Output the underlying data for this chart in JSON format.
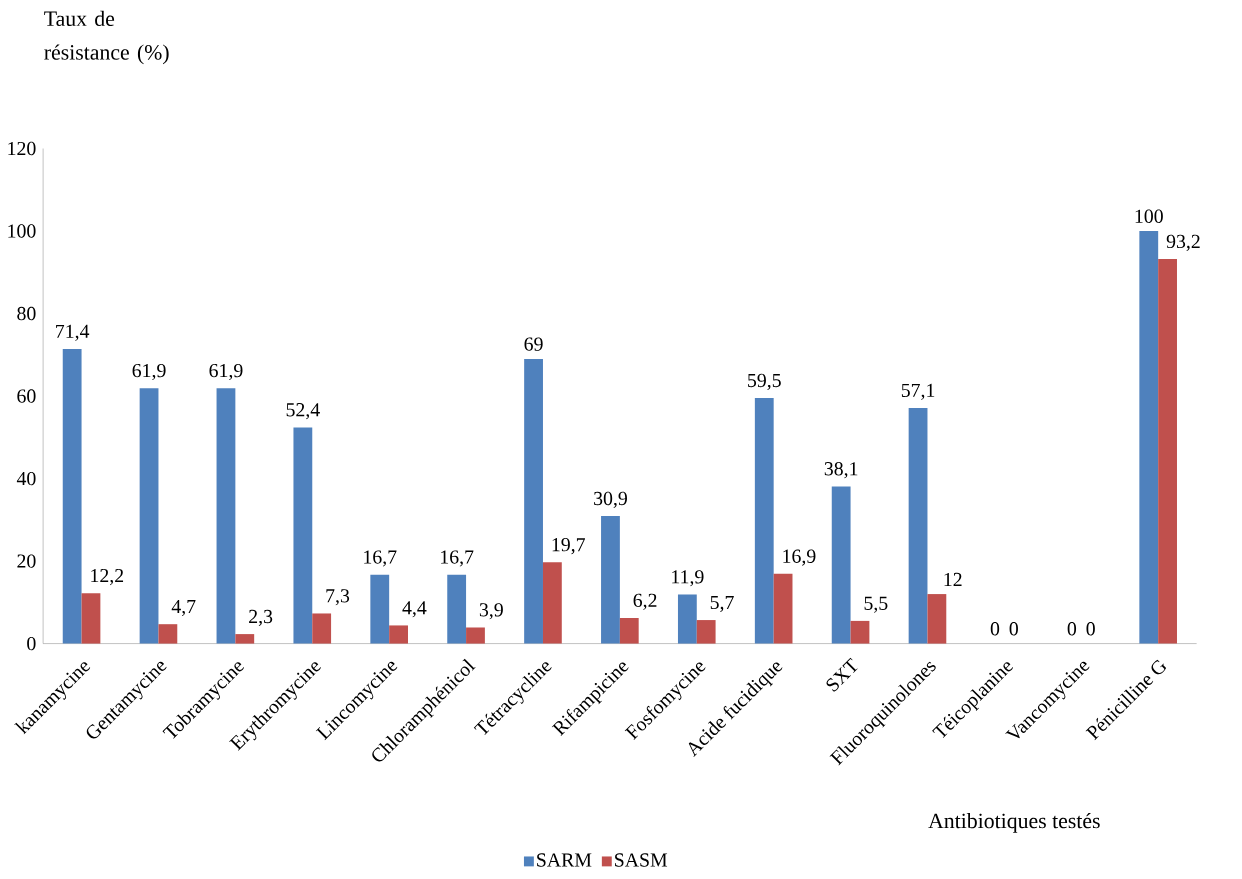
{
  "chart_data": {
    "type": "bar",
    "ylabel": "Taux de résistance (%)",
    "xlabel": "Antibiotiques testés",
    "categories": [
      "kanamycine",
      "Gentamycine",
      "Tobramycine",
      "Erythromycine",
      "Lincomycine",
      "Chloramphénicol",
      "Tétracycline",
      "Rifampicine",
      "Fosfomycine",
      "Acide fucidique",
      "SXT",
      "Fluoroquinolones",
      "Téicoplanine",
      "Vancomycine",
      "Pénicilline G"
    ],
    "series": [
      {
        "name": "SARM",
        "color": "#4f81bd",
        "values": [
          71.4,
          61.9,
          61.9,
          52.4,
          16.7,
          16.7,
          69,
          30.9,
          11.9,
          59.5,
          38.1,
          57.1,
          0,
          0,
          100
        ],
        "value_labels": [
          "71,4",
          "61,9",
          "61,9",
          "52,4",
          "16,7",
          "16,7",
          "69",
          "30,9",
          "11,9",
          "59,5",
          "38,1",
          "57,1",
          "0",
          "0",
          "100"
        ]
      },
      {
        "name": "SASM",
        "color": "#c0504d",
        "values": [
          12.2,
          4.7,
          2.3,
          7.3,
          4.4,
          3.9,
          19.7,
          6.2,
          5.7,
          16.9,
          5.5,
          12,
          0,
          0,
          93.2
        ],
        "value_labels": [
          "12,2",
          "4,7",
          "2,3",
          "7,3",
          "4,4",
          "3,9",
          "19,7",
          "6,2",
          "5,7",
          "16,9",
          "5,5",
          "12",
          "0",
          "0",
          "93,2"
        ]
      }
    ],
    "ylim": [
      0,
      120
    ],
    "yticks": [
      0,
      20,
      40,
      60,
      80,
      100,
      120
    ],
    "legend": "bottom"
  }
}
